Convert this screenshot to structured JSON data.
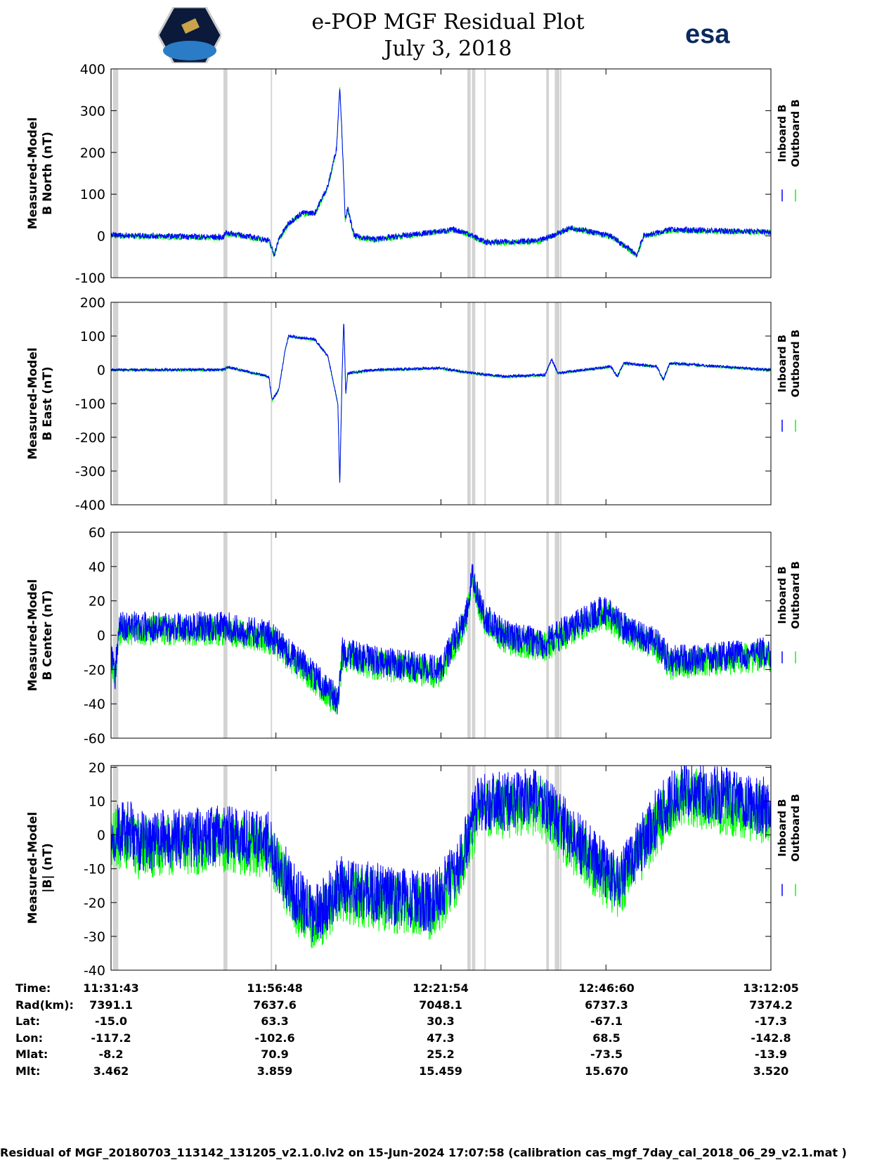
{
  "header": {
    "title": "e-POP MGF Residual Plot",
    "date": "July 3, 2018",
    "esa_logo": "esa",
    "epop_logo": "CASSIOPE"
  },
  "colors": {
    "inboard": "#0000ff",
    "outboard": "#00ff00",
    "gap": "#d3d3d3"
  },
  "chart_data": [
    {
      "type": "line",
      "ylabel": [
        "Measured-Model",
        "B North (nT)"
      ],
      "ylim": [
        -100,
        400
      ],
      "yticks": [
        400,
        300,
        200,
        100,
        0,
        -100
      ],
      "legend": [
        "Inboard B",
        "Outboard B"
      ],
      "noise": 7,
      "trend": [
        [
          0,
          2
        ],
        [
          17,
          -3
        ],
        [
          17.5,
          8
        ],
        [
          24,
          -10
        ],
        [
          24.8,
          -45
        ],
        [
          25.6,
          -5
        ],
        [
          27,
          30
        ],
        [
          29,
          55
        ],
        [
          31,
          55
        ],
        [
          33,
          120
        ],
        [
          34.3,
          210
        ],
        [
          34.8,
          360
        ],
        [
          35.3,
          180
        ],
        [
          35.6,
          40
        ],
        [
          36,
          65
        ],
        [
          37,
          0
        ],
        [
          40,
          -8
        ],
        [
          52,
          15
        ],
        [
          54,
          8
        ],
        [
          57,
          -15
        ],
        [
          65,
          -12
        ],
        [
          67,
          0
        ],
        [
          70,
          20
        ],
        [
          76,
          0
        ],
        [
          80,
          -45
        ],
        [
          81,
          0
        ],
        [
          85,
          15
        ],
        [
          100,
          10
        ]
      ]
    },
    {
      "type": "line",
      "ylabel": [
        "Measured-Model",
        "B East (nT)"
      ],
      "ylim": [
        -400,
        200
      ],
      "yticks": [
        200,
        100,
        0,
        -100,
        -200,
        -300,
        -400
      ],
      "legend": [
        "Inboard B",
        "Outboard B"
      ],
      "noise": 4,
      "trend": [
        [
          0,
          0
        ],
        [
          17,
          0
        ],
        [
          17.8,
          8
        ],
        [
          24,
          -20
        ],
        [
          24.5,
          -90
        ],
        [
          25.5,
          -60
        ],
        [
          26.5,
          60
        ],
        [
          27,
          100
        ],
        [
          31,
          90
        ],
        [
          33,
          40
        ],
        [
          34.5,
          -100
        ],
        [
          34.8,
          -340
        ],
        [
          35.1,
          -50
        ],
        [
          35.4,
          150
        ],
        [
          35.7,
          -70
        ],
        [
          36,
          -10
        ],
        [
          40,
          0
        ],
        [
          50,
          5
        ],
        [
          55,
          -10
        ],
        [
          60,
          -20
        ],
        [
          66,
          -15
        ],
        [
          67,
          30
        ],
        [
          68,
          -10
        ],
        [
          76,
          10
        ],
        [
          77,
          -20
        ],
        [
          78,
          20
        ],
        [
          83,
          10
        ],
        [
          84,
          -30
        ],
        [
          85,
          20
        ],
        [
          100,
          0
        ]
      ]
    },
    {
      "type": "line",
      "ylabel": [
        "Measured-Model",
        "B Center (nT)"
      ],
      "ylim": [
        -60,
        60
      ],
      "yticks": [
        60,
        40,
        20,
        0,
        -20,
        -40,
        -60
      ],
      "legend": [
        "Inboard B",
        "Outboard B"
      ],
      "noise": 9,
      "trend": [
        [
          0,
          -10
        ],
        [
          0.6,
          -25
        ],
        [
          1.2,
          5
        ],
        [
          17,
          5
        ],
        [
          24,
          0
        ],
        [
          30,
          -20
        ],
        [
          34.5,
          -38
        ],
        [
          35.2,
          -10
        ],
        [
          40,
          -15
        ],
        [
          50,
          -20
        ],
        [
          54,
          10
        ],
        [
          55,
          35
        ],
        [
          56,
          20
        ],
        [
          57,
          10
        ],
        [
          60,
          0
        ],
        [
          66,
          -5
        ],
        [
          70,
          5
        ],
        [
          75,
          15
        ],
        [
          78,
          5
        ],
        [
          83,
          -5
        ],
        [
          85,
          -15
        ],
        [
          100,
          -10
        ]
      ]
    },
    {
      "type": "line",
      "ylabel": [
        "Measured-Model",
        "|B| (nT)"
      ],
      "ylim": [
        -40,
        20.5
      ],
      "yticks": [
        20,
        10,
        0,
        -10,
        -20,
        -30,
        -40
      ],
      "legend": [
        "Inboard B",
        "Outboard B"
      ],
      "noise": 9,
      "trend": [
        [
          0,
          1
        ],
        [
          3,
          1
        ],
        [
          4,
          -2
        ],
        [
          17,
          0
        ],
        [
          24,
          -2
        ],
        [
          28,
          -18
        ],
        [
          31,
          -24
        ],
        [
          35,
          -15
        ],
        [
          40,
          -17
        ],
        [
          49,
          -20
        ],
        [
          53,
          -9
        ],
        [
          56,
          10
        ],
        [
          60,
          10
        ],
        [
          65,
          11
        ],
        [
          70,
          0
        ],
        [
          75,
          -10
        ],
        [
          77,
          -14
        ],
        [
          80,
          -5
        ],
        [
          83,
          5
        ],
        [
          87,
          14
        ],
        [
          100,
          8
        ]
      ]
    }
  ],
  "data_gaps_minutes": [
    [
      0.3,
      1.1
    ],
    [
      17.1,
      17.7
    ],
    [
      24.3,
      24.5
    ],
    [
      54.2,
      54.7
    ],
    [
      54.9,
      55.4
    ],
    [
      56.8,
      57.0
    ],
    [
      66.2,
      66.6
    ],
    [
      67.5,
      68.2
    ],
    [
      68.3,
      68.5
    ]
  ],
  "x_axis": {
    "span_minutes": 100.37,
    "tick_minutes": [
      0,
      25.08,
      50.18,
      75.28,
      100.37
    ]
  },
  "orbit_table": {
    "rows": [
      {
        "label": "Time:",
        "values": [
          "11:31:43",
          "11:56:48",
          "12:21:54",
          "12:46:60",
          "13:12:05"
        ]
      },
      {
        "label": "Rad(km):",
        "values": [
          "7391.1",
          "7637.6",
          "7048.1",
          "6737.3",
          "7374.2"
        ]
      },
      {
        "label": "Lat:",
        "values": [
          "-15.0",
          "63.3",
          "30.3",
          "-67.1",
          "-17.3"
        ]
      },
      {
        "label": "Lon:",
        "values": [
          "-117.2",
          "-102.6",
          "47.3",
          "68.5",
          "-142.8"
        ]
      },
      {
        "label": "Mlat:",
        "values": [
          "-8.2",
          "70.9",
          "25.2",
          "-73.5",
          "-13.9"
        ]
      },
      {
        "label": "Mlt:",
        "values": [
          "3.462",
          "3.859",
          "15.459",
          "15.670",
          "3.520"
        ]
      }
    ]
  },
  "footer": "Residual of MGF_20180703_113142_131205_v2.1.0.lv2 on 15-Jun-2024 17:07:58 (calibration cas_mgf_7day_cal_2018_06_29_v2.1.mat )"
}
